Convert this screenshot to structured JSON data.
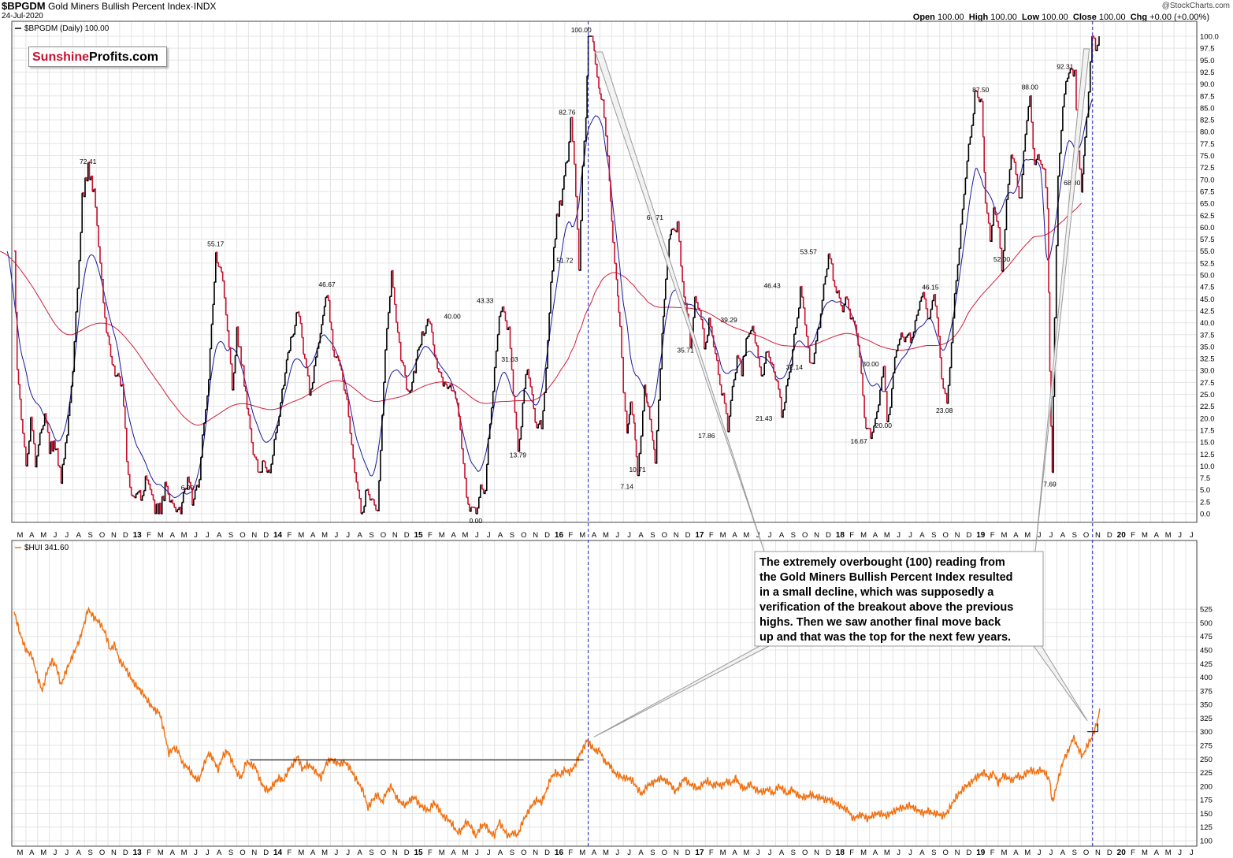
{
  "header": {
    "symbol": "$BPGDM",
    "name": "Gold Miners Bullish Percent Index",
    "exchange": "INDX",
    "date": "24-Jul-2020",
    "source": "@StockCharts.com",
    "ohlc": {
      "open_label": "Open",
      "open": "100.00",
      "high_label": "High",
      "high": "100.00",
      "low_label": "Low",
      "low": "100.00",
      "close_label": "Close",
      "close": "100.00",
      "chg_label": "Chg",
      "chg": "+0.00 (+0.00%)"
    }
  },
  "logo": {
    "part1": "Sunshine",
    "part2": "Profits.com"
  },
  "colors": {
    "bpgdm_up": "#000000",
    "bpgdm_down": "#c8102e",
    "ma_fast": "#1a1a9c",
    "ma_slow": "#d21e3c",
    "hui": "#f07010",
    "vline": "#2020c0",
    "grid": "#e4e4e4"
  },
  "annotation": {
    "lines": [
      "The extremely overbought (100) reading from",
      "the Gold Miners Bullish Percent Index resulted",
      "in a small decline, which was supposedly a",
      "verification of the breakout above the previous",
      "highs. Then we saw another final move back",
      "up and that was the top for the next few years."
    ]
  },
  "chart_data": [
    {
      "type": "line",
      "title": "$BPGDM (Daily) 100.00",
      "legend": "$BPGDM (Daily) 100.00",
      "x_range": [
        "2012-03",
        "2020-07"
      ],
      "ylim": [
        0,
        100
      ],
      "y_ticks": [
        "100.0",
        "97.5",
        "95.0",
        "92.5",
        "90.0",
        "87.5",
        "85.0",
        "82.5",
        "80.0",
        "77.5",
        "75.0",
        "72.5",
        "70.0",
        "67.5",
        "65.0",
        "62.5",
        "60.0",
        "57.5",
        "55.0",
        "52.5",
        "50.0",
        "47.5",
        "45.0",
        "42.5",
        "40.0",
        "37.5",
        "35.0",
        "32.5",
        "30.0",
        "27.5",
        "25.0",
        "22.5",
        "20.0",
        "17.5",
        "15.0",
        "12.5",
        "10.0",
        "7.5",
        "5.0",
        "2.5",
        "0.0"
      ],
      "x_tick_labels": [
        "M",
        "A",
        "M",
        "J",
        "J",
        "A",
        "S",
        "O",
        "N",
        "D",
        "13",
        "F",
        "M",
        "A",
        "M",
        "J",
        "J",
        "A",
        "S",
        "O",
        "N",
        "D",
        "14",
        "F",
        "M",
        "A",
        "M",
        "J",
        "J",
        "A",
        "S",
        "O",
        "N",
        "D",
        "15",
        "F",
        "M",
        "A",
        "M",
        "J",
        "J",
        "A",
        "S",
        "O",
        "N",
        "D",
        "16",
        "F",
        "M",
        "A",
        "M",
        "J",
        "J",
        "A",
        "S",
        "O",
        "N",
        "D",
        "17",
        "F",
        "M",
        "A",
        "M",
        "J",
        "J",
        "A",
        "S",
        "O",
        "N",
        "D",
        "18",
        "F",
        "M",
        "A",
        "M",
        "J",
        "J",
        "A",
        "S",
        "O",
        "N",
        "D",
        "19",
        "F",
        "M",
        "A",
        "M",
        "J",
        "J",
        "A",
        "S",
        "O",
        "N",
        "D",
        "20",
        "F",
        "M",
        "A",
        "M",
        "J",
        "J"
      ],
      "annotations": [
        {
          "t": 6.3,
          "v": 72.41,
          "label": "72.41"
        },
        {
          "t": 14.8,
          "v": 6.9,
          "label": "6.90"
        },
        {
          "t": 17.2,
          "v": 55.17,
          "label": "55.17"
        },
        {
          "t": 26.7,
          "v": 46.67,
          "label": "46.67"
        },
        {
          "t": 37.4,
          "v": 40.0,
          "label": "40.00"
        },
        {
          "t": 40.2,
          "v": 43.33,
          "label": "43.33"
        },
        {
          "t": 39.4,
          "v": 0.0,
          "label": "0.00"
        },
        {
          "t": 42.3,
          "v": 31.03,
          "label": "31.03"
        },
        {
          "t": 43.0,
          "v": 13.79,
          "label": "13.79"
        },
        {
          "t": 47.2,
          "v": 82.76,
          "label": "82.76"
        },
        {
          "t": 47.0,
          "v": 51.72,
          "label": "51.72"
        },
        {
          "t": 48.4,
          "v": 100.0,
          "label": "100.00"
        },
        {
          "t": 52.3,
          "v": 7.14,
          "label": "7.14"
        },
        {
          "t": 53.2,
          "v": 10.71,
          "label": "10.71"
        },
        {
          "t": 54.7,
          "v": 60.71,
          "label": "60.71"
        },
        {
          "t": 57.3,
          "v": 35.71,
          "label": "35.71"
        },
        {
          "t": 61.0,
          "v": 39.29,
          "label": "39.29"
        },
        {
          "t": 59.1,
          "v": 17.86,
          "label": "17.86"
        },
        {
          "t": 64.0,
          "v": 21.43,
          "label": "21.43"
        },
        {
          "t": 64.7,
          "v": 46.43,
          "label": "46.43"
        },
        {
          "t": 66.6,
          "v": 32.14,
          "label": "32.14"
        },
        {
          "t": 67.8,
          "v": 53.57,
          "label": "53.57"
        },
        {
          "t": 73.1,
          "v": 30.0,
          "label": "30.00"
        },
        {
          "t": 72.1,
          "v": 16.67,
          "label": "16.67"
        },
        {
          "t": 74.2,
          "v": 20.0,
          "label": "20.00"
        },
        {
          "t": 78.2,
          "v": 46.15,
          "label": "46.15"
        },
        {
          "t": 79.4,
          "v": 23.08,
          "label": "23.08"
        },
        {
          "t": 82.5,
          "v": 87.5,
          "label": "87.50"
        },
        {
          "t": 84.3,
          "v": 52.0,
          "label": "52.00"
        },
        {
          "t": 86.7,
          "v": 88.0,
          "label": "88.00"
        },
        {
          "t": 88.4,
          "v": 7.69,
          "label": "7.69"
        },
        {
          "t": 89.7,
          "v": 92.31,
          "label": "92.31"
        },
        {
          "t": 90.3,
          "v": 68.0,
          "label": "68.00"
        }
      ]
    },
    {
      "type": "line",
      "title": "$HUI 341.60",
      "legend": "$HUI 341.60",
      "ylim": [
        90,
        540
      ],
      "y_ticks": [
        "525",
        "500",
        "475",
        "450",
        "425",
        "400",
        "375",
        "350",
        "325",
        "300",
        "275",
        "250",
        "225",
        "200",
        "175",
        "150",
        "125",
        "100"
      ],
      "last": 341.6
    }
  ]
}
